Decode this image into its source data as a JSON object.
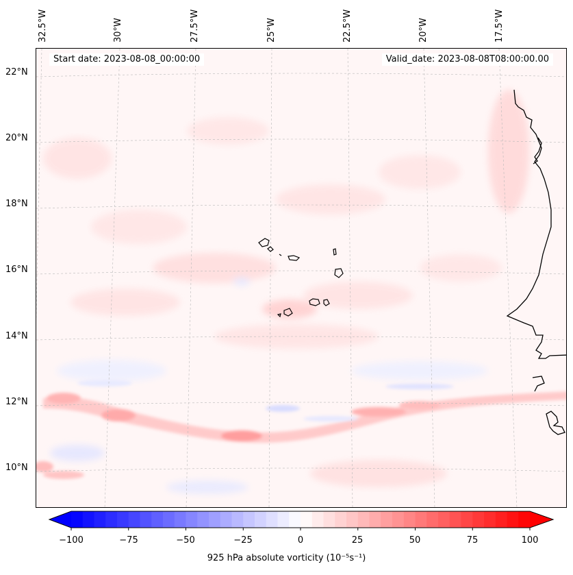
{
  "header": {
    "start_date": "Start date: 2023-08-08_00:00:00",
    "valid_date": "Valid_date: 2023-08-08T08:00:00.00"
  },
  "map": {
    "projection": "regional lat-lon with curved graticule",
    "longitude_labels": [
      "32.5°W",
      "30°W",
      "27.5°W",
      "25°W",
      "22.5°W",
      "20°W",
      "17.5°W"
    ],
    "latitude_labels": [
      "22°N",
      "20°N",
      "18°N",
      "16°N",
      "14°N",
      "12°N",
      "10°N"
    ],
    "features": [
      "Cape Verde islands",
      "West African coastline"
    ],
    "field": "925 hPa absolute vorticity",
    "field_colormap": "bwr"
  },
  "colorbar": {
    "label": "925 hPa absolute vorticity (10⁻⁵s⁻¹)",
    "ticks": [
      "−100",
      "−75",
      "−50",
      "−25",
      "0",
      "25",
      "50",
      "75",
      "100"
    ],
    "min": -100,
    "max": 100,
    "extend": "both",
    "colormap": "bwr",
    "colors": {
      "low": "#0000ff",
      "mid": "#ffffff",
      "high": "#ff0000"
    }
  }
}
